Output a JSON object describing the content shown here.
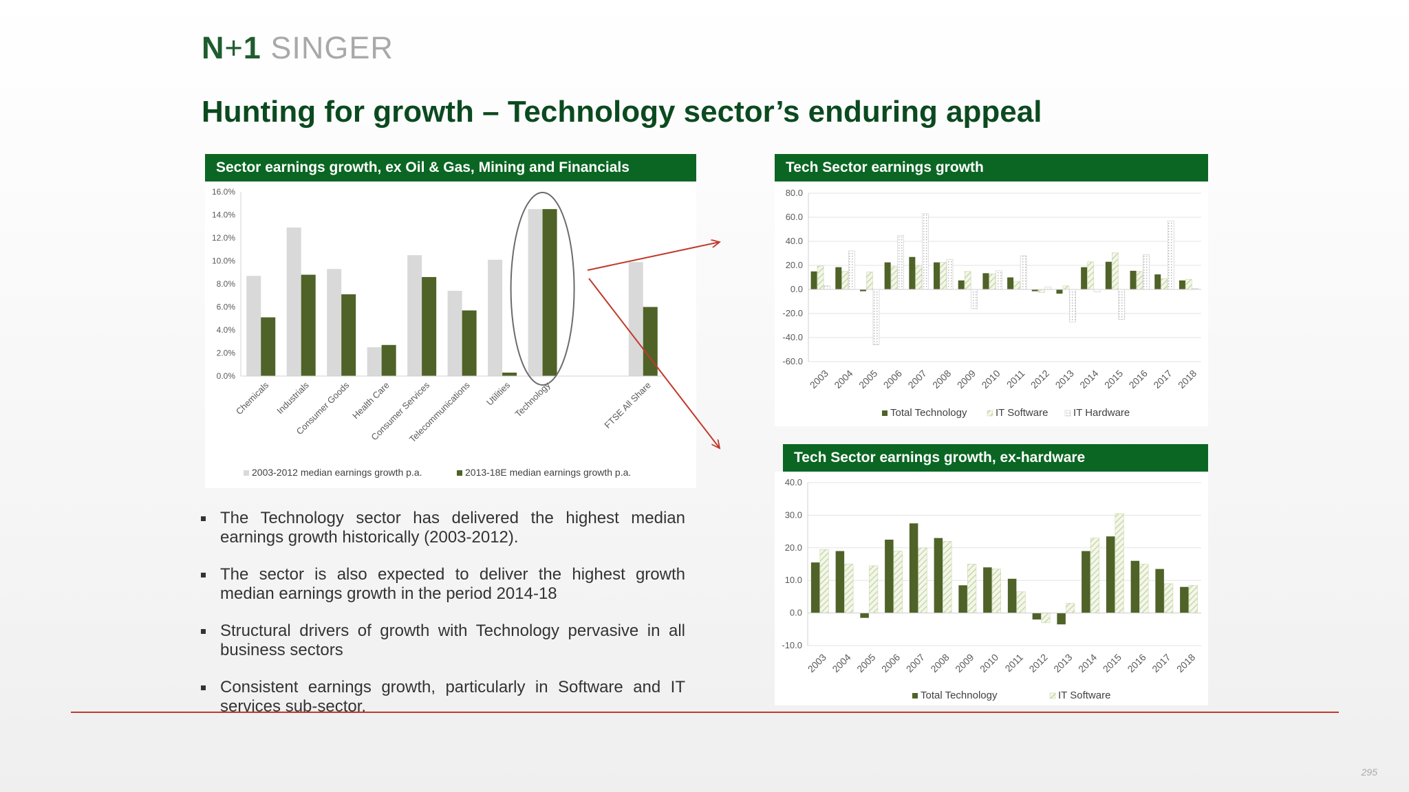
{
  "logo": {
    "n1": "N",
    "plus": "+",
    "one": "1",
    "singer": " SINGER"
  },
  "title": "Hunting for growth – Technology sector’s enduring appeal",
  "page_number": "295",
  "bullets": [
    "The Technology sector has delivered the highest median earnings growth historically (2003-2012).",
    "The sector is also expected to deliver the highest growth median earnings growth in the period 2014-18",
    "Structural drivers of growth with Technology pervasive in all business sectors",
    "Consistent earnings growth, particularly in Software and IT services sub-sector."
  ],
  "colors": {
    "dark_green": "#4f6228",
    "light_grey": "#d9d9d9",
    "hatch_green": "#c9d7a9",
    "title_green": "#0b4a1f",
    "panel_green": "#0b6623",
    "arrow_red": "#c0392b"
  },
  "chart_data": [
    {
      "type": "bar",
      "title": "Sector earnings growth, ex Oil & Gas, Mining and Financials",
      "categories": [
        "Chemicals",
        "Industrials",
        "Consumer Goods",
        "Health Care",
        "Consumer Services",
        "Telecommunications",
        "Utilities",
        "Technology",
        "FTSE All Share"
      ],
      "series": [
        {
          "name": "2003-2012 median earnings growth p.a.",
          "values": [
            8.7,
            12.9,
            9.3,
            2.5,
            10.5,
            7.4,
            10.1,
            14.5,
            9.9
          ]
        },
        {
          "name": "2013-18E median earnings growth p.a.",
          "values": [
            5.1,
            8.8,
            7.1,
            2.7,
            8.6,
            5.7,
            0.3,
            14.5,
            6.0
          ]
        }
      ],
      "yticks": [
        "0.0%",
        "2.0%",
        "4.0%",
        "6.0%",
        "8.0%",
        "10.0%",
        "12.0%",
        "14.0%",
        "16.0%"
      ],
      "ylim": [
        0,
        16
      ],
      "legend": "bottom",
      "grid": false,
      "highlight": "Technology"
    },
    {
      "type": "bar",
      "title": "Tech Sector earnings growth",
      "categories": [
        "2003",
        "2004",
        "2005",
        "2006",
        "2007",
        "2008",
        "2009",
        "2010",
        "2011",
        "2012",
        "2013",
        "2014",
        "2015",
        "2016",
        "2017",
        "2018"
      ],
      "series": [
        {
          "name": "Total Technology",
          "values": [
            15,
            18.5,
            -1.5,
            22.5,
            27,
            22.5,
            7.5,
            13.5,
            10,
            -1.5,
            -3.5,
            18.5,
            23,
            15.5,
            12.5,
            7.5
          ]
        },
        {
          "name": "IT Software",
          "values": [
            19.5,
            15,
            14.5,
            19,
            20,
            22.5,
            15,
            13,
            6.5,
            -2.5,
            3,
            23,
            30.5,
            15,
            9,
            8.5
          ]
        },
        {
          "name": "IT Hardware",
          "values": [
            3,
            32,
            -46,
            45,
            63,
            25,
            -16,
            15.5,
            28,
            2,
            -27,
            -2,
            -25,
            29,
            57,
            1
          ]
        }
      ],
      "yticks": [
        "-60.0",
        "-40.0",
        "-20.0",
        "0.0",
        "20.0",
        "40.0",
        "60.0",
        "80.0"
      ],
      "ylim": [
        -60,
        80
      ],
      "legend": "bottom",
      "grid": true
    },
    {
      "type": "bar",
      "title": "Tech Sector earnings growth, ex-hardware",
      "categories": [
        "2003",
        "2004",
        "2005",
        "2006",
        "2007",
        "2008",
        "2009",
        "2010",
        "2011",
        "2012",
        "2013",
        "2014",
        "2015",
        "2016",
        "2017",
        "2018"
      ],
      "series": [
        {
          "name": "Total Technology",
          "values": [
            15.5,
            19,
            -1.5,
            22.5,
            27.5,
            23,
            8.5,
            14,
            10.5,
            -2,
            -3.5,
            19,
            23.5,
            16,
            13.5,
            8
          ]
        },
        {
          "name": "IT Software",
          "values": [
            19.5,
            15,
            14.5,
            19,
            20,
            22,
            15,
            13.5,
            6.5,
            -3,
            3,
            23,
            30.5,
            15,
            9,
            8.5
          ]
        }
      ],
      "yticks": [
        "-10.0",
        "0.0",
        "10.0",
        "20.0",
        "30.0",
        "40.0"
      ],
      "ylim": [
        -10,
        40
      ],
      "legend": "bottom",
      "grid": true
    }
  ]
}
